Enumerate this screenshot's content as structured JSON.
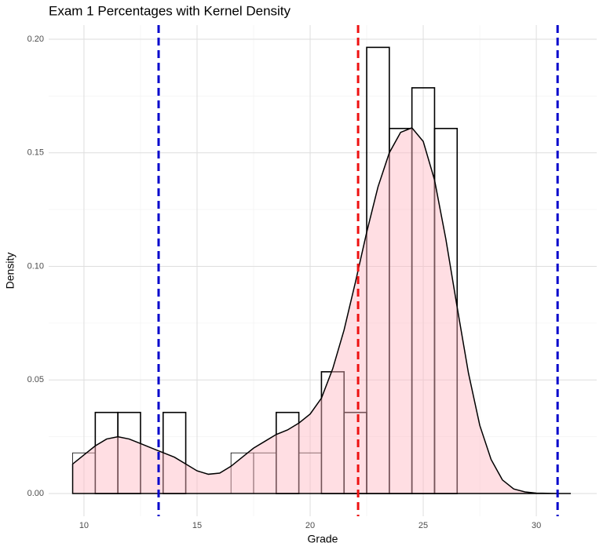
{
  "chart_data": {
    "type": "histogram",
    "title": "Exam 1 Percentages with Kernel Density",
    "x_label": "Grade",
    "y_label": "Density",
    "bins": [
      9.5,
      10.5,
      11.5,
      12.5,
      13.5,
      14.5,
      15.5,
      16.5,
      17.5,
      18.5,
      19.5,
      20.5,
      21.5,
      22.5,
      23.5,
      24.5,
      25.5,
      26.5
    ],
    "values": [
      0.0179,
      0.0357,
      0.0357,
      0,
      0.0357,
      0,
      0,
      0.0179,
      0.0179,
      0.0357,
      0.0179,
      0.0536,
      0.0357,
      0.1964,
      0.1607,
      0.1786,
      0.1607
    ],
    "bar_edge_color": "#000000",
    "density": {
      "color": "#ffb6c1",
      "line_color": "#000000",
      "x": [
        9.5,
        10,
        10.5,
        11,
        11.5,
        12,
        12.5,
        13,
        13.5,
        14,
        14.5,
        15,
        15.5,
        16,
        16.5,
        17,
        17.5,
        18,
        18.5,
        19,
        19.5,
        20,
        20.5,
        21,
        21.5,
        22,
        22.5,
        23,
        23.5,
        24,
        24.5,
        25,
        25.5,
        26,
        26.5,
        27,
        27.5,
        28,
        28.5,
        29,
        29.5,
        30,
        30.5,
        31,
        31.5
      ],
      "values": [
        0.013,
        0.017,
        0.021,
        0.024,
        0.025,
        0.024,
        0.022,
        0.02,
        0.018,
        0.016,
        0.013,
        0.01,
        0.0085,
        0.009,
        0.012,
        0.016,
        0.02,
        0.023,
        0.026,
        0.028,
        0.031,
        0.035,
        0.042,
        0.055,
        0.072,
        0.093,
        0.115,
        0.135,
        0.15,
        0.159,
        0.161,
        0.155,
        0.138,
        0.112,
        0.082,
        0.053,
        0.03,
        0.015,
        0.006,
        0.002,
        0.0007,
        0.0002,
        0.0001,
        0,
        0
      ]
    },
    "vlines": [
      {
        "x": 13.3,
        "color": "#0000cc"
      },
      {
        "x": 22.12,
        "color": "#ee1111"
      },
      {
        "x": 30.94,
        "color": "#0000cc"
      }
    ],
    "xlim": [
      8.44,
      32.67
    ],
    "ylim": [
      -0.01,
      0.2062
    ],
    "xticks": [
      10,
      15,
      20,
      25,
      30
    ],
    "yticks": [
      {
        "value": 0,
        "label": "0.00"
      },
      {
        "value": 0.05,
        "label": "0.05"
      },
      {
        "value": 0.1,
        "label": "0.10"
      },
      {
        "value": 0.15,
        "label": "0.15"
      },
      {
        "value": 0.2,
        "label": "0.20"
      }
    ],
    "grid": true
  }
}
